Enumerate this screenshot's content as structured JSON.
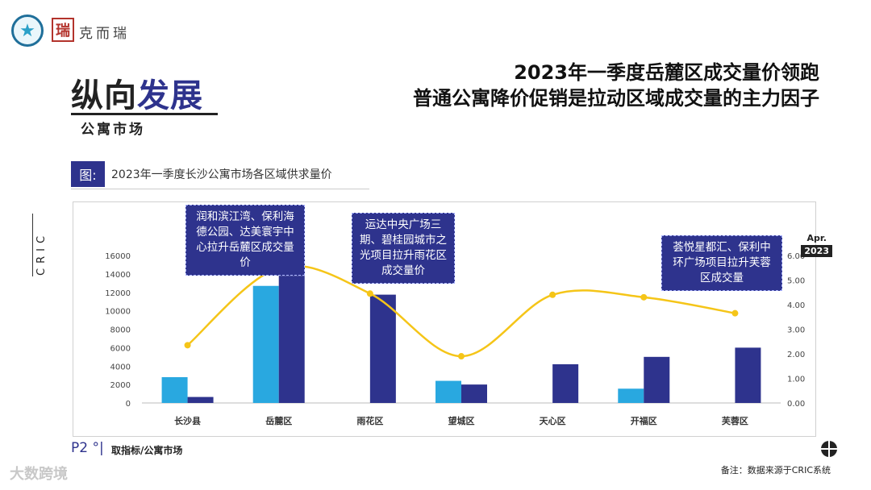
{
  "brand": {
    "name": "克而瑞",
    "seal": "瑞"
  },
  "section": {
    "title_plain": "纵向",
    "title_highlight": "发展",
    "subtitle": "公寓市场"
  },
  "headline": {
    "line1": "2023年一季度岳麓区成交量价领跑",
    "line2": "普通公寓降价促销是拉动区域成交量的主力因子"
  },
  "figure": {
    "tag": "图:",
    "title": "2023年一季度长沙公寓市场各区域供求量价"
  },
  "side_mark": "CRIC",
  "date_badge": {
    "month": "Apr.",
    "year": "2023"
  },
  "callouts": [
    "润和滨江湾、保利海德公园、达美寰宇中心拉升岳麓区成交量价",
    "运达中央广场三期、碧桂园城市之光项目拉升雨花区成交量价",
    "荟悦星都汇、保利中环广场项目拉升芙蓉区成交量"
  ],
  "footer": {
    "page": "P2 °|",
    "left_text": "取指标/公寓市场",
    "note": "备注：数据来源于CRIC系统"
  },
  "watermark": "大数跨境",
  "colors": {
    "accent": "#2e338d",
    "bar_light": "#29a8e0",
    "bar_dark": "#2e338d",
    "line": "#f5c518"
  },
  "chart_data": {
    "type": "bar",
    "categories": [
      "长沙县",
      "岳麓区",
      "雨花区",
      "望城区",
      "天心区",
      "开福区",
      "芙蓉区"
    ],
    "series": [
      {
        "type": "bar",
        "axis": "left",
        "values": [
          2800,
          12700,
          0,
          2400,
          0,
          1550,
          0
        ]
      },
      {
        "type": "bar",
        "axis": "left",
        "values": [
          650,
          13800,
          11750,
          2000,
          4200,
          5000,
          6000
        ]
      },
      {
        "type": "line",
        "axis": "right",
        "values": [
          2.35,
          5.5,
          4.45,
          1.9,
          4.4,
          4.3,
          3.65
        ]
      }
    ],
    "y_left": {
      "min": 0,
      "max": 16000,
      "ticks": [
        0,
        2000,
        4000,
        6000,
        8000,
        10000,
        12000,
        14000,
        16000
      ]
    },
    "y_right": {
      "min": 0,
      "max": 6,
      "ticks": [
        "0.00",
        "1.00",
        "2.00",
        "3.00",
        "4.00",
        "5.00",
        "6.00"
      ]
    },
    "grid": false,
    "legend": "none"
  }
}
